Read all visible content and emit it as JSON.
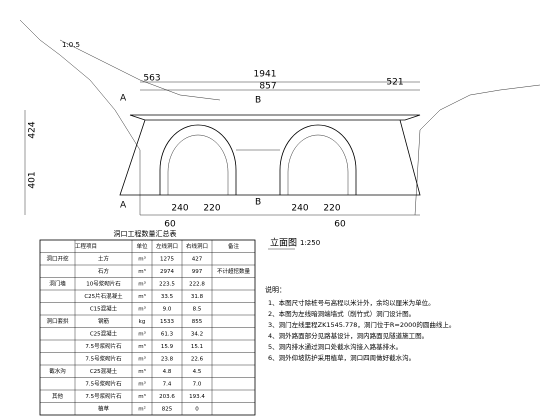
{
  "drawing": {
    "title": "立面图",
    "scale": "1:250",
    "dimensions": {
      "total": "1941",
      "middle": "857",
      "left": "563",
      "right": "521",
      "height_upper": "424",
      "height_lower": "401",
      "bottom": [
        "240",
        "220",
        "240",
        "220"
      ],
      "bottom_offsets": [
        "60",
        "60"
      ],
      "slope": "1:0.5"
    },
    "section_marks": [
      "A",
      "A",
      "B",
      "B"
    ]
  },
  "table": {
    "title": "洞口工程数量汇总表",
    "headers": [
      "工程项目",
      "单位",
      "左线洞口",
      "右线洞口",
      "备注"
    ],
    "rows": [
      [
        "洞口开挖",
        "土方",
        "m³",
        "1275",
        "427",
        ""
      ],
      [
        "",
        "石方",
        "m³",
        "2974",
        "997",
        "不计超挖数量"
      ],
      [
        "洞门墙",
        "10号浆砌片石",
        "m³",
        "223.5",
        "222.8",
        ""
      ],
      [
        "",
        "C25片石混凝土",
        "m³",
        "33.5",
        "31.8",
        ""
      ],
      [
        "",
        "C15混凝土",
        "m³",
        "9.0",
        "8.5",
        ""
      ],
      [
        "洞口套拱",
        "钢筋",
        "kg",
        "1533",
        "855",
        ""
      ],
      [
        "",
        "C25混凝土",
        "m³",
        "61.3",
        "34.2",
        ""
      ],
      [
        "",
        "7.5号浆砌片石",
        "m³",
        "15.9",
        "15.1",
        ""
      ],
      [
        "",
        "7.5号浆砌片石",
        "m³",
        "23.8",
        "22.6",
        ""
      ],
      [
        "截水沟",
        "C25混凝土",
        "m³",
        "4.8",
        "4.5",
        ""
      ],
      [
        "",
        "7.5号浆砌片石",
        "m³",
        "7.4",
        "7.0",
        ""
      ],
      [
        "其他",
        "7.5号浆砌片石",
        "m³",
        "203.6",
        "193.4",
        ""
      ],
      [
        "",
        "植草",
        "m²",
        "825",
        "0",
        ""
      ]
    ]
  },
  "notes": {
    "heading": "说明：",
    "items": [
      "1、本图尺寸除桩号与高程以米计外，余均以厘米为单位。",
      "2、本图为左线暗洞端墙式（削竹式）洞门设计图。",
      "3、洞门左线里程ZK1545.778，洞门位于R=2000的圆曲线上。",
      "4、洞外路面部分见路基设计，洞内路面见隧道施工图。",
      "5、洞内排水通过洞口处截水沟接入路基排水。",
      "6、洞外仰坡防护采用植草，洞口四周做好截水沟。"
    ]
  }
}
